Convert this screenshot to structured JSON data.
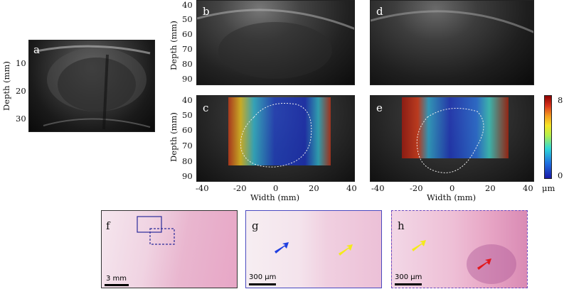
{
  "panels": {
    "a": {
      "label": "a",
      "ylabel": "Depth (mm)",
      "yticks": [
        "10",
        "20",
        "30"
      ]
    },
    "b": {
      "label": "b",
      "ylabel": "Depth (mm)",
      "yticks": [
        "40",
        "50",
        "60",
        "70",
        "80",
        "90"
      ]
    },
    "c": {
      "label": "c",
      "ylabel": "Depth (mm)",
      "yticks": [
        "40",
        "50",
        "60",
        "70",
        "80",
        "90"
      ],
      "xlabel": "Width (mm)",
      "xticks": [
        "-40",
        "-20",
        "0",
        "20",
        "40"
      ]
    },
    "d": {
      "label": "d"
    },
    "e": {
      "label": "e",
      "xlabel": "Width (mm)",
      "xticks": [
        "-40",
        "-20",
        "0",
        "20",
        "40"
      ]
    },
    "f": {
      "label": "f",
      "scale": "3 mm"
    },
    "g": {
      "label": "g",
      "scale": "300 μm"
    },
    "h": {
      "label": "h",
      "scale": "300 μm"
    }
  },
  "colorbar": {
    "max": "8",
    "min": "0",
    "unit": "μm",
    "colors": [
      "#1a1aa8",
      "#1e6fe0",
      "#2fd8d8",
      "#b4f04c",
      "#f6e526",
      "#f39a1f",
      "#d9331c",
      "#8b0000"
    ]
  },
  "arrows": {
    "blue": "#1f3fe0",
    "yellow": "#f4ea1b",
    "red": "#e3161c"
  }
}
